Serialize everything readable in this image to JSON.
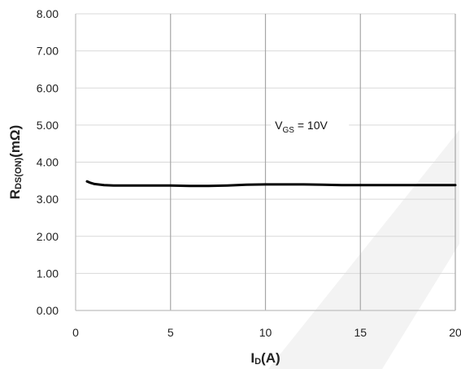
{
  "chart_data": {
    "type": "line",
    "title": "",
    "xlabel": {
      "main": "I",
      "sub": "D",
      "tail": "(A)"
    },
    "ylabel": {
      "main": "R",
      "sub": "DS(ON)",
      "tail": "(mΩ)"
    },
    "xlim": [
      0,
      20
    ],
    "ylim": [
      0,
      8
    ],
    "x_ticks": [
      0,
      5,
      10,
      15,
      20
    ],
    "x_tick_labels": [
      "0",
      "5",
      "10",
      "15",
      "20"
    ],
    "y_ticks": [
      0,
      1,
      2,
      3,
      4,
      5,
      6,
      7,
      8
    ],
    "y_tick_labels": [
      "0.00",
      "1.00",
      "2.00",
      "3.00",
      "4.00",
      "5.00",
      "6.00",
      "7.00",
      "8.00"
    ],
    "grid": {
      "vertical": true,
      "horizontal": true
    },
    "annotation": {
      "main": "V",
      "sub": "GS",
      "tail": " = 10V",
      "x": 10.5,
      "y": 5.0
    },
    "series": [
      {
        "x": [
          0.6,
          0.8,
          1.0,
          1.5,
          2.0,
          3.0,
          4.0,
          5.0,
          6.0,
          7.0,
          8.0,
          9.0,
          10.0,
          11.0,
          12.0,
          13.0,
          14.0,
          15.0,
          16.0,
          17.0,
          18.0,
          19.0,
          20.0
        ],
        "y": [
          3.48,
          3.44,
          3.41,
          3.38,
          3.37,
          3.37,
          3.37,
          3.37,
          3.36,
          3.36,
          3.37,
          3.39,
          3.4,
          3.4,
          3.4,
          3.39,
          3.38,
          3.38,
          3.38,
          3.38,
          3.38,
          3.38,
          3.38
        ],
        "color": "#000000"
      }
    ],
    "colors": {
      "line": "#000000",
      "grid_vertical": "#a6a6a6",
      "grid_horizontal": "#d9d9d9",
      "axis": "#bfbfbf",
      "text": "#222222",
      "watermark": "#f3f3f3"
    }
  }
}
